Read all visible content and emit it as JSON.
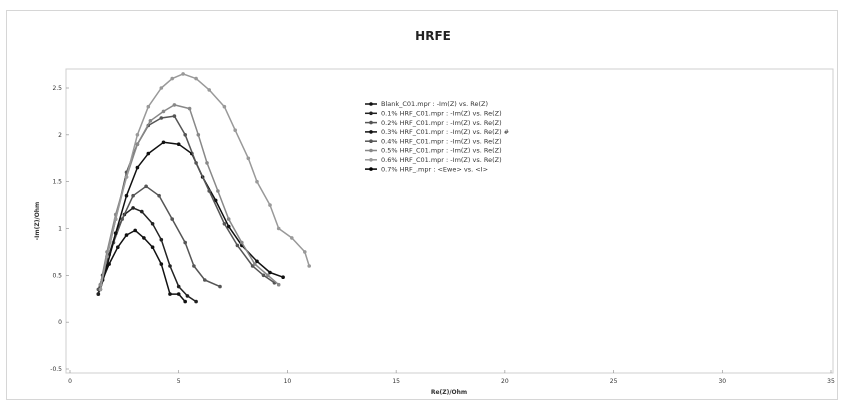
{
  "chart_data": {
    "type": "line",
    "title": "HRFE",
    "xlabel": "Re(Z)/Ohm",
    "ylabel": "-Im(Z)/Ohm",
    "xlim": [
      0,
      35
    ],
    "ylim": [
      -0.5,
      2.7
    ],
    "x_ticks": [
      "0",
      "5",
      "10",
      "15",
      "20",
      "25",
      "30",
      "35"
    ],
    "y_ticks": [
      "-0.5",
      "0",
      "0.5",
      "1",
      "1.5",
      "2",
      "2.5"
    ],
    "grid": false,
    "legend_position": "top-right",
    "series": [
      {
        "name": "Blank_C01.mpr : -Im(Z) vs. Re(Z)",
        "color": "#111111",
        "points": [
          [
            1.3,
            0.3
          ],
          [
            1.5,
            0.45
          ],
          [
            1.8,
            0.62
          ],
          [
            2.2,
            0.8
          ],
          [
            2.6,
            0.93
          ],
          [
            3.0,
            0.98
          ],
          [
            3.4,
            0.9
          ],
          [
            3.8,
            0.8
          ],
          [
            4.2,
            0.62
          ],
          [
            4.6,
            0.3
          ],
          [
            5.0,
            0.3
          ],
          [
            5.3,
            0.22
          ]
        ]
      },
      {
        "name": "0.1% HRF_C01.mpr : -Im(Z) vs. Re(Z)",
        "color": "#222222",
        "points": [
          [
            1.3,
            0.3
          ],
          [
            1.5,
            0.5
          ],
          [
            1.8,
            0.72
          ],
          [
            2.1,
            0.95
          ],
          [
            2.5,
            1.15
          ],
          [
            2.9,
            1.22
          ],
          [
            3.3,
            1.18
          ],
          [
            3.8,
            1.05
          ],
          [
            4.2,
            0.88
          ],
          [
            4.6,
            0.6
          ],
          [
            5.0,
            0.38
          ],
          [
            5.4,
            0.28
          ],
          [
            5.8,
            0.22
          ]
        ]
      },
      {
        "name": "0.2% HRF_C01.mpr : -Im(Z) vs. Re(Z)",
        "color": "#555555",
        "points": [
          [
            1.3,
            0.35
          ],
          [
            1.6,
            0.55
          ],
          [
            2.0,
            0.85
          ],
          [
            2.4,
            1.1
          ],
          [
            2.9,
            1.35
          ],
          [
            3.5,
            1.45
          ],
          [
            4.1,
            1.35
          ],
          [
            4.7,
            1.1
          ],
          [
            5.3,
            0.85
          ],
          [
            5.7,
            0.6
          ],
          [
            6.2,
            0.45
          ],
          [
            6.9,
            0.38
          ]
        ]
      },
      {
        "name": "0.3% HRF_C01.mpr : -Im(Z) vs. Re(Z) #",
        "color": "#111111",
        "points": [
          [
            1.4,
            0.35
          ],
          [
            1.7,
            0.6
          ],
          [
            2.1,
            0.95
          ],
          [
            2.6,
            1.35
          ],
          [
            3.1,
            1.65
          ],
          [
            3.6,
            1.8
          ],
          [
            4.3,
            1.92
          ],
          [
            5.0,
            1.9
          ],
          [
            5.6,
            1.8
          ],
          [
            6.1,
            1.55
          ],
          [
            6.7,
            1.3
          ],
          [
            7.3,
            1.02
          ],
          [
            7.9,
            0.82
          ],
          [
            8.6,
            0.65
          ],
          [
            9.2,
            0.53
          ],
          [
            9.8,
            0.48
          ]
        ]
      },
      {
        "name": "0.4% HRF_C01.mpr : -Im(Z) vs. Re(Z)",
        "color": "#555555",
        "points": [
          [
            1.4,
            0.4
          ],
          [
            1.7,
            0.7
          ],
          [
            2.1,
            1.1
          ],
          [
            2.6,
            1.6
          ],
          [
            3.1,
            1.9
          ],
          [
            3.6,
            2.1
          ],
          [
            4.2,
            2.18
          ],
          [
            4.8,
            2.2
          ],
          [
            5.3,
            2.0
          ],
          [
            5.8,
            1.7
          ],
          [
            6.4,
            1.4
          ],
          [
            7.1,
            1.05
          ],
          [
            7.7,
            0.82
          ],
          [
            8.4,
            0.6
          ],
          [
            8.9,
            0.5
          ],
          [
            9.4,
            0.42
          ]
        ]
      },
      {
        "name": "0.5% HRF_C01.mpr : -Im(Z) vs. Re(Z)",
        "color": "#888888",
        "points": [
          [
            1.4,
            0.4
          ],
          [
            1.7,
            0.75
          ],
          [
            2.1,
            1.15
          ],
          [
            2.6,
            1.55
          ],
          [
            3.1,
            1.9
          ],
          [
            3.7,
            2.15
          ],
          [
            4.3,
            2.25
          ],
          [
            4.8,
            2.32
          ],
          [
            5.5,
            2.28
          ],
          [
            5.9,
            2.0
          ],
          [
            6.3,
            1.7
          ],
          [
            6.8,
            1.4
          ],
          [
            7.3,
            1.1
          ],
          [
            7.9,
            0.85
          ],
          [
            8.5,
            0.62
          ],
          [
            9.1,
            0.5
          ],
          [
            9.6,
            0.4
          ]
        ]
      },
      {
        "name": "0.6% HRF_C01.mpr : -Im(Z) vs. Re(Z)",
        "color": "#999999",
        "points": [
          [
            1.4,
            0.35
          ],
          [
            1.7,
            0.7
          ],
          [
            2.1,
            1.1
          ],
          [
            2.6,
            1.55
          ],
          [
            3.1,
            2.0
          ],
          [
            3.6,
            2.3
          ],
          [
            4.2,
            2.5
          ],
          [
            4.7,
            2.6
          ],
          [
            5.2,
            2.65
          ],
          [
            5.8,
            2.6
          ],
          [
            6.4,
            2.48
          ],
          [
            7.1,
            2.3
          ],
          [
            7.6,
            2.05
          ],
          [
            8.2,
            1.75
          ],
          [
            8.6,
            1.5
          ],
          [
            9.2,
            1.25
          ],
          [
            9.6,
            1.0
          ],
          [
            10.2,
            0.9
          ],
          [
            10.8,
            0.75
          ],
          [
            11.0,
            0.6
          ]
        ]
      },
      {
        "name": "0.7% HRF_.mpr : <Ewe> vs. <I>",
        "color": "#000000",
        "points": []
      }
    ]
  }
}
